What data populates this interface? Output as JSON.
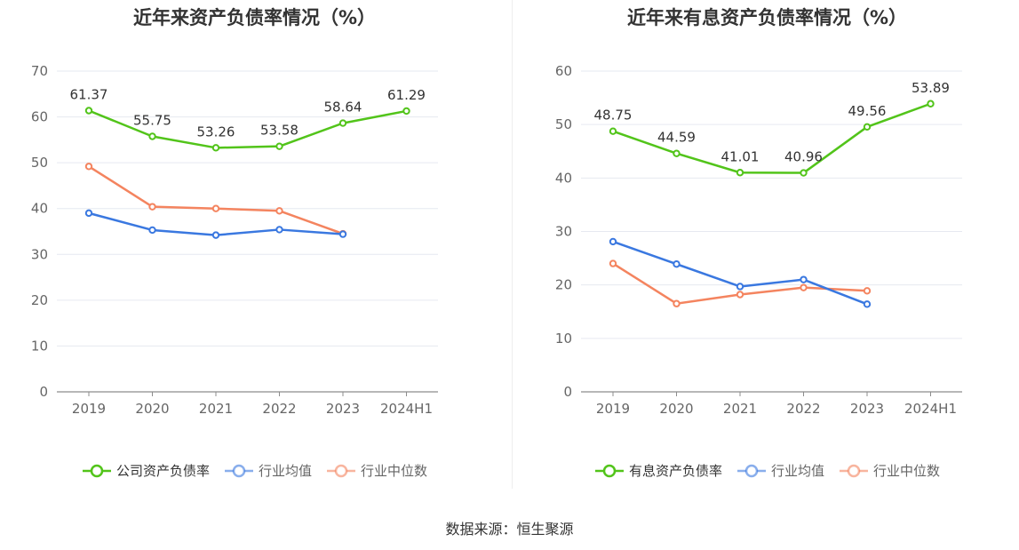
{
  "source": "数据来源：恒生聚源",
  "chart_data": [
    {
      "type": "line",
      "title": "近年来资产负债率情况（%）",
      "categories": [
        "2019",
        "2020",
        "2021",
        "2022",
        "2023",
        "2024H1"
      ],
      "ylim": [
        0,
        70
      ],
      "yticks": [
        0,
        10,
        20,
        30,
        40,
        50,
        60,
        70
      ],
      "grid": true,
      "legend_position": "bottom",
      "series": [
        {
          "name": "公司资产负债率",
          "color": "#52c41a",
          "values": [
            61.37,
            55.75,
            53.26,
            53.58,
            58.64,
            61.29
          ],
          "show_labels": true
        },
        {
          "name": "行业均值",
          "color": "#3a78e0",
          "values": [
            39.0,
            35.3,
            34.2,
            35.4,
            34.4,
            null
          ],
          "show_labels": false
        },
        {
          "name": "行业中位数",
          "color": "#f4845f",
          "values": [
            49.2,
            40.4,
            40.0,
            39.5,
            34.5,
            null
          ],
          "show_labels": false
        }
      ]
    },
    {
      "type": "line",
      "title": "近年来有息资产负债率情况（%）",
      "categories": [
        "2019",
        "2020",
        "2021",
        "2022",
        "2023",
        "2024H1"
      ],
      "ylim": [
        0,
        60
      ],
      "yticks": [
        0,
        10,
        20,
        30,
        40,
        50,
        60
      ],
      "grid": true,
      "legend_position": "bottom",
      "series": [
        {
          "name": "有息资产负债率",
          "color": "#52c41a",
          "values": [
            48.75,
            44.59,
            41.01,
            40.96,
            49.56,
            53.89
          ],
          "show_labels": true
        },
        {
          "name": "行业均值",
          "color": "#3a78e0",
          "values": [
            28.1,
            23.9,
            19.7,
            21.0,
            16.4,
            null
          ],
          "show_labels": false
        },
        {
          "name": "行业中位数",
          "color": "#f4845f",
          "values": [
            24.0,
            16.5,
            18.2,
            19.5,
            18.9,
            null
          ],
          "show_labels": false
        }
      ]
    }
  ]
}
